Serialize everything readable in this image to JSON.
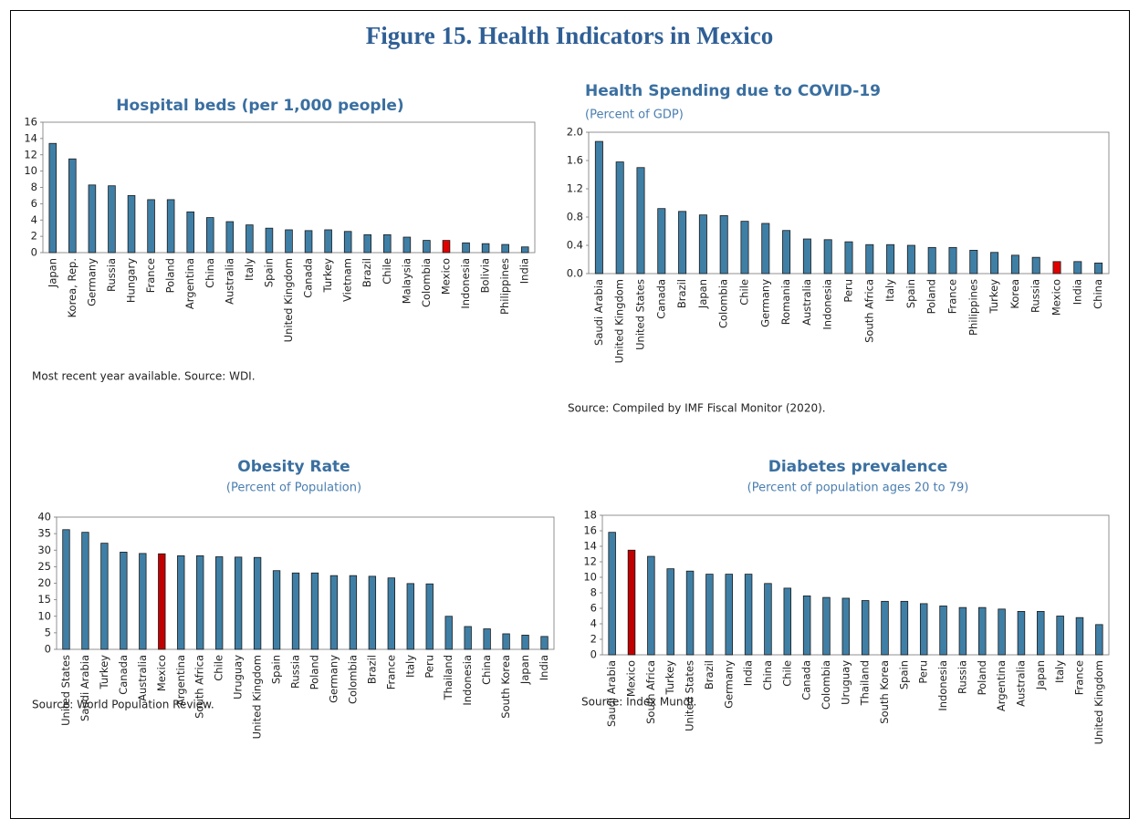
{
  "title": "Figure 15. Health Indicators in Mexico",
  "chart_data": [
    {
      "type": "bar",
      "title": "Hospital beds (per 1,000 people)",
      "note": "Most recent year available. Source: WDI.",
      "categories": [
        "Japan",
        "Korea, Rep.",
        "Germany",
        "Russia",
        "Hungary",
        "France",
        "Poland",
        "Argentina",
        "China",
        "Australia",
        "Italy",
        "Spain",
        "United Kingdom",
        "Canada",
        "Turkey",
        "Vietnam",
        "Brazil",
        "Chile",
        "Malaysia",
        "Colombia",
        "Mexico",
        "Indonesia",
        "Bolivia",
        "Philippines",
        "India"
      ],
      "values": [
        13.4,
        11.5,
        8.3,
        8.2,
        7.0,
        6.5,
        6.5,
        5.0,
        4.3,
        3.8,
        3.4,
        3.0,
        2.8,
        2.7,
        2.8,
        2.6,
        2.2,
        2.2,
        1.9,
        1.5,
        1.5,
        1.2,
        1.1,
        1.0,
        0.7
      ],
      "colors": [
        "#3f7fa6",
        "#3f7fa6",
        "#3f7fa6",
        "#3f7fa6",
        "#3f7fa6",
        "#3f7fa6",
        "#3f7fa6",
        "#3f7fa6",
        "#3f7fa6",
        "#3f7fa6",
        "#3f7fa6",
        "#3f7fa6",
        "#3f7fa6",
        "#3f7fa6",
        "#3f7fa6",
        "#3f7fa6",
        "#3f7fa6",
        "#3f7fa6",
        "#3f7fa6",
        "#3f7fa6",
        "#e00000",
        "#3f7fa6",
        "#3f7fa6",
        "#3f7fa6",
        "#3f7fa6"
      ],
      "ylim": [
        0,
        16
      ],
      "yticks": [
        0,
        2,
        4,
        6,
        8,
        10,
        12,
        14,
        16
      ],
      "grid": false
    },
    {
      "type": "bar",
      "title": "Health Spending due to COVID-19",
      "subtitle": "(Percent of GDP)",
      "note": "Source: Compiled by IMF Fiscal Monitor (2020).",
      "categories": [
        "Saudi Arabia",
        "United Kingdom",
        "United States",
        "Canada",
        "Brazil",
        "Japan",
        "Colombia",
        "Chile",
        "Germany",
        "Romania",
        "Australia",
        "Indonesia",
        "Peru",
        "South Africa",
        "Italy",
        "Spain",
        "Poland",
        "France",
        "Philippines",
        "Turkey",
        "Korea",
        "Russia",
        "Mexico",
        "India",
        "China"
      ],
      "values": [
        1.87,
        1.58,
        1.5,
        0.92,
        0.88,
        0.83,
        0.82,
        0.74,
        0.71,
        0.61,
        0.49,
        0.48,
        0.45,
        0.41,
        0.41,
        0.4,
        0.37,
        0.37,
        0.33,
        0.3,
        0.26,
        0.23,
        0.17,
        0.17,
        0.15
      ],
      "colors": [
        "#3f7fa6",
        "#3f7fa6",
        "#3f7fa6",
        "#3f7fa6",
        "#3f7fa6",
        "#3f7fa6",
        "#3f7fa6",
        "#3f7fa6",
        "#3f7fa6",
        "#3f7fa6",
        "#3f7fa6",
        "#3f7fa6",
        "#3f7fa6",
        "#3f7fa6",
        "#3f7fa6",
        "#3f7fa6",
        "#3f7fa6",
        "#3f7fa6",
        "#3f7fa6",
        "#3f7fa6",
        "#3f7fa6",
        "#3f7fa6",
        "#e00000",
        "#3f7fa6",
        "#3f7fa6"
      ],
      "ylim": [
        0,
        2
      ],
      "yticks": [
        {
          "value": 0,
          "label": "0.0"
        },
        0.4,
        0.8,
        1.2,
        1.6,
        {
          "value": 2,
          "label": "2.0"
        }
      ],
      "grid": false
    },
    {
      "type": "bar",
      "title": "Obesity Rate",
      "subtitle": "(Percent of Population)",
      "note": "Source: World Population Review.",
      "categories": [
        "United States",
        "Saudi Arabia",
        "Turkey",
        "Canada",
        "Australia",
        "Mexico",
        "Argentina",
        "South Africa",
        "Chile",
        "Uruguay",
        "United Kingdom",
        "Spain",
        "Russia",
        "Poland",
        "Germany",
        "Colombia",
        "Brazil",
        "France",
        "Italy",
        "Peru",
        "Thailand",
        "Indonesia",
        "China",
        "South Korea",
        "Japan",
        "India"
      ],
      "values": [
        36.2,
        35.4,
        32.1,
        29.4,
        29.0,
        28.9,
        28.3,
        28.3,
        28.0,
        27.9,
        27.8,
        23.8,
        23.1,
        23.1,
        22.3,
        22.3,
        22.1,
        21.6,
        19.9,
        19.8,
        10.0,
        6.9,
        6.2,
        4.7,
        4.3,
        3.9
      ],
      "colors": [
        "#3f7fa6",
        "#3f7fa6",
        "#3f7fa6",
        "#3f7fa6",
        "#3f7fa6",
        "#c00000",
        "#3f7fa6",
        "#3f7fa6",
        "#3f7fa6",
        "#3f7fa6",
        "#3f7fa6",
        "#3f7fa6",
        "#3f7fa6",
        "#3f7fa6",
        "#3f7fa6",
        "#3f7fa6",
        "#3f7fa6",
        "#3f7fa6",
        "#3f7fa6",
        "#3f7fa6",
        "#3f7fa6",
        "#3f7fa6",
        "#3f7fa6",
        "#3f7fa6",
        "#3f7fa6",
        "#3f7fa6"
      ],
      "ylim": [
        0,
        40
      ],
      "yticks": [
        0,
        5,
        10,
        15,
        20,
        25,
        30,
        35,
        40
      ],
      "grid": false
    },
    {
      "type": "bar",
      "title": "Diabetes prevalence",
      "subtitle": "(Percent of population ages 20 to 79)",
      "note": "Source: Index Mundi.",
      "categories": [
        "Saudi Arabia",
        "Mexico",
        "South Africa",
        "Turkey",
        "United States",
        "Brazil",
        "Germany",
        "India",
        "China",
        "Chile",
        "Canada",
        "Colombia",
        "Uruguay",
        "Thailand",
        "South Korea",
        "Spain",
        "Peru",
        "Indonesia",
        "Russia",
        "Poland",
        "Argentina",
        "Australia",
        "Japan",
        "Italy",
        "France",
        "United Kingdom"
      ],
      "values": [
        15.8,
        13.5,
        12.7,
        11.1,
        10.8,
        10.4,
        10.4,
        10.4,
        9.2,
        8.6,
        7.6,
        7.4,
        7.3,
        7.0,
        6.9,
        6.9,
        6.6,
        6.3,
        6.1,
        6.1,
        5.9,
        5.6,
        5.6,
        5.0,
        4.8,
        3.9
      ],
      "colors": [
        "#3f7fa6",
        "#c00000",
        "#3f7fa6",
        "#3f7fa6",
        "#3f7fa6",
        "#3f7fa6",
        "#3f7fa6",
        "#3f7fa6",
        "#3f7fa6",
        "#3f7fa6",
        "#3f7fa6",
        "#3f7fa6",
        "#3f7fa6",
        "#3f7fa6",
        "#3f7fa6",
        "#3f7fa6",
        "#3f7fa6",
        "#3f7fa6",
        "#3f7fa6",
        "#3f7fa6",
        "#3f7fa6",
        "#3f7fa6",
        "#3f7fa6",
        "#3f7fa6",
        "#3f7fa6",
        "#3f7fa6"
      ],
      "ylim": [
        0,
        18
      ],
      "yticks": [
        0,
        2,
        4,
        6,
        8,
        10,
        12,
        14,
        16,
        18
      ],
      "grid": false
    }
  ]
}
